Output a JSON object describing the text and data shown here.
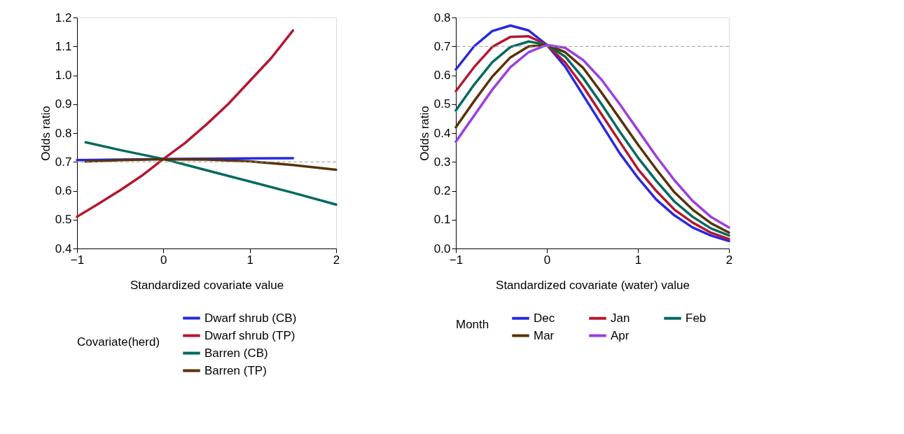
{
  "chart_data": [
    {
      "type": "line",
      "xlabel": "Standardized covariate value",
      "ylabel": "Odds ratio",
      "legend_title": "Covariate(herd)",
      "legend": "bottom",
      "grid": false,
      "line_style": "solid",
      "marker": "none",
      "xlim": [
        -1,
        2
      ],
      "xticks": [
        -1,
        0,
        1,
        2
      ],
      "ylim": [
        0.4,
        1.2
      ],
      "yticks": [
        0.4,
        0.5,
        0.6,
        0.7,
        0.8,
        0.9,
        {
          "value": 1,
          "label": "1.0"
        },
        1.1,
        1.2
      ],
      "ref_lines": [
        {
          "axis": "y",
          "value": 0.7,
          "label": null,
          "color": "#999999",
          "line_style": "dashed"
        }
      ],
      "series": [
        {
          "name": "Dwarf shrub (CB)",
          "color": "#2828e0",
          "x": [
            -1,
            -0.5,
            0,
            0.5,
            1,
            1.5
          ],
          "values": [
            0.706,
            0.708,
            0.71,
            0.711,
            0.712,
            0.713
          ]
        },
        {
          "name": "Dwarf shrub (TP)",
          "color": "#b5172f",
          "x": [
            -1,
            -0.75,
            -0.5,
            -0.25,
            0,
            0.25,
            0.5,
            0.75,
            1,
            1.25,
            1.5
          ],
          "values": [
            0.51,
            0.555,
            0.602,
            0.652,
            0.71,
            0.765,
            0.83,
            0.9,
            0.98,
            1.06,
            1.155
          ]
        },
        {
          "name": "Barren (CB)",
          "color": "#006a5e",
          "x": [
            -0.9,
            -0.5,
            0,
            0.5,
            1,
            1.5,
            2
          ],
          "values": [
            0.768,
            0.741,
            0.71,
            0.671,
            0.632,
            0.593,
            0.552
          ]
        },
        {
          "name": "Barren (TP)",
          "color": "#5a3208",
          "x": [
            -0.9,
            -0.5,
            0,
            0.5,
            1,
            1.5,
            2
          ],
          "values": [
            0.701,
            0.706,
            0.709,
            0.708,
            0.702,
            0.689,
            0.673
          ]
        }
      ]
    },
    {
      "type": "line",
      "xlabel": "Standardized covariate (water) value",
      "ylabel": "Odds ratio",
      "legend_title": "Month",
      "legend": "bottom",
      "grid": false,
      "line_style": "solid",
      "marker": "none",
      "xlim": [
        -1,
        2
      ],
      "xticks": [
        -1,
        0,
        1,
        2
      ],
      "ylim": [
        0,
        0.8
      ],
      "yticks": [
        {
          "value": 0,
          "label": "0.0"
        },
        0.1,
        0.2,
        0.3,
        0.4,
        0.5,
        0.6,
        0.7,
        0.8
      ],
      "ref_lines": [
        {
          "axis": "y",
          "value": 0.7,
          "label": null,
          "color": "#999999",
          "line_style": "dashed"
        }
      ],
      "x": [
        -1,
        -0.8,
        -0.6,
        -0.4,
        -0.2,
        0,
        0.2,
        0.4,
        0.6,
        0.8,
        1,
        1.2,
        1.4,
        1.6,
        1.8,
        2
      ],
      "series": [
        {
          "name": "Dec",
          "color": "#2828e0",
          "values": [
            0.62,
            0.7,
            0.753,
            0.772,
            0.755,
            0.705,
            0.63,
            0.53,
            0.43,
            0.33,
            0.245,
            0.17,
            0.115,
            0.073,
            0.045,
            0.026
          ]
        },
        {
          "name": "Jan",
          "color": "#b5172f",
          "values": [
            0.545,
            0.628,
            0.698,
            0.733,
            0.735,
            0.705,
            0.645,
            0.56,
            0.465,
            0.37,
            0.275,
            0.2,
            0.135,
            0.09,
            0.055,
            0.033
          ]
        },
        {
          "name": "Feb",
          "color": "#006a5e",
          "values": [
            0.478,
            0.567,
            0.645,
            0.698,
            0.717,
            0.705,
            0.665,
            0.59,
            0.5,
            0.405,
            0.315,
            0.235,
            0.163,
            0.11,
            0.07,
            0.045
          ]
        },
        {
          "name": "Mar",
          "color": "#5a3208",
          "values": [
            0.42,
            0.51,
            0.595,
            0.662,
            0.7,
            0.705,
            0.68,
            0.625,
            0.54,
            0.45,
            0.36,
            0.275,
            0.195,
            0.135,
            0.088,
            0.055
          ]
        },
        {
          "name": "Apr",
          "color": "#9b3fe0",
          "values": [
            0.37,
            0.46,
            0.55,
            0.628,
            0.68,
            0.705,
            0.695,
            0.652,
            0.585,
            0.5,
            0.41,
            0.32,
            0.237,
            0.165,
            0.11,
            0.073
          ]
        }
      ]
    }
  ]
}
